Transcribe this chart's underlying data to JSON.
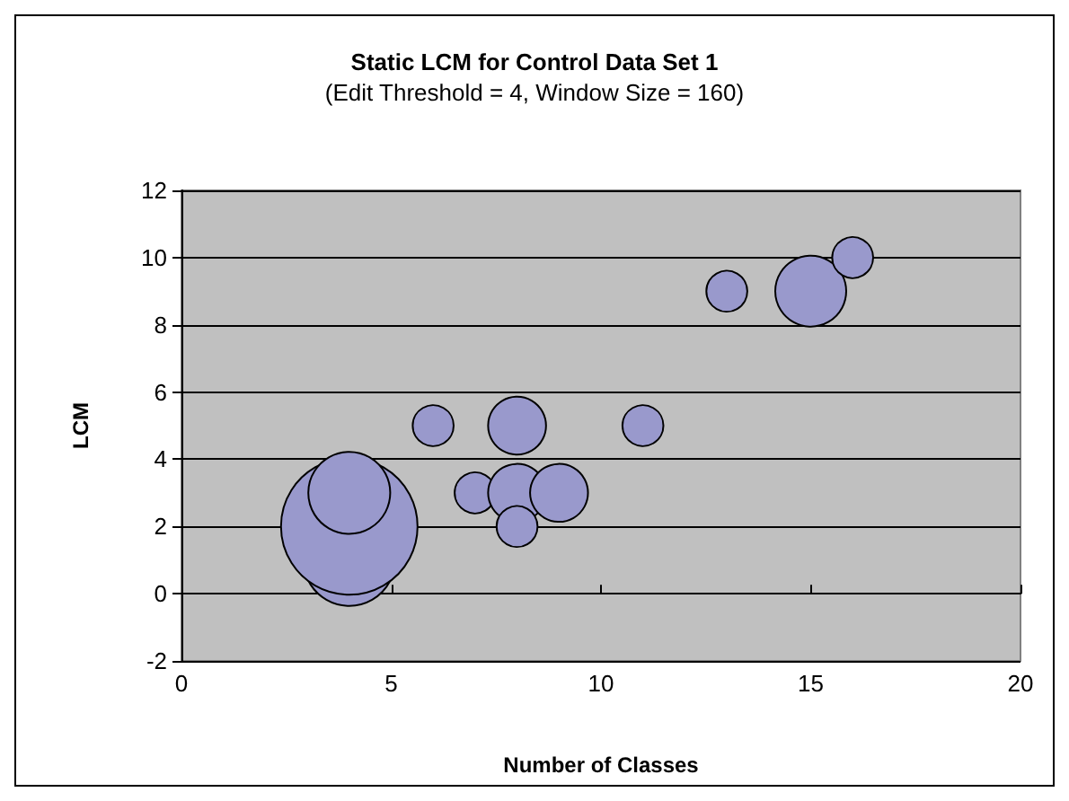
{
  "chart_data": {
    "type": "bubble",
    "title": "Static LCM for Control Data Set 1",
    "subtitle": "(Edit Threshold = 4, Window Size = 160)",
    "xlabel": "Number of Classes",
    "ylabel": "LCM",
    "x": [
      4,
      4,
      4,
      6,
      8,
      11,
      7,
      8,
      9,
      8,
      13,
      15,
      16
    ],
    "values": [
      1,
      2,
      3,
      5,
      5,
      5,
      3,
      3,
      3,
      2,
      9,
      9,
      10
    ],
    "sizes": [
      0.45,
      1,
      0.36,
      0.09,
      0.18,
      0.09,
      0.09,
      0.18,
      0.18,
      0.09,
      0.09,
      0.27,
      0.09
    ],
    "color": "#9999cc",
    "marker": "circle",
    "xlim": [
      0,
      20
    ],
    "xticks": [
      0,
      5,
      10,
      15,
      20
    ],
    "ylim": [
      -2,
      12
    ],
    "yticks": [
      -2,
      0,
      2,
      4,
      6,
      8,
      10,
      12
    ],
    "grid": "y"
  }
}
